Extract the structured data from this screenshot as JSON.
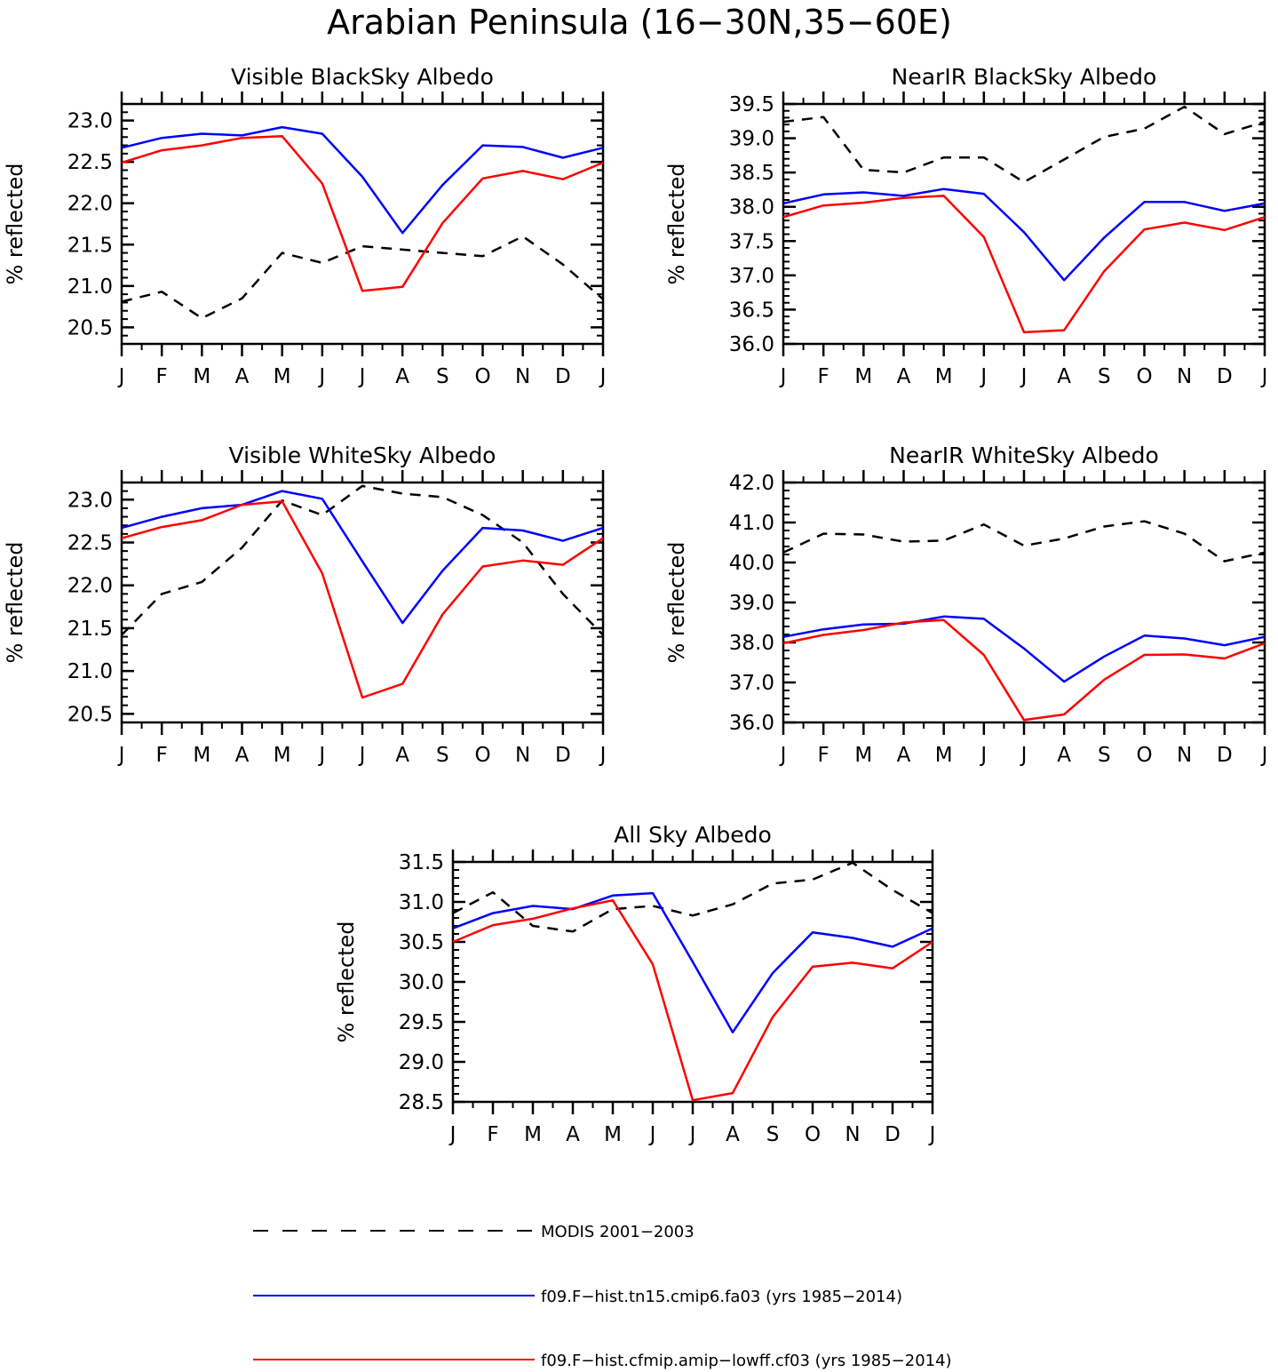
{
  "figure": {
    "title": "Arabian Peninsula (16−30N,35−60E)"
  },
  "series_styles": [
    {
      "key": "modis",
      "color": "#000000",
      "dash": "dashed"
    },
    {
      "key": "tn15",
      "color": "#0000ff",
      "dash": "solid"
    },
    {
      "key": "lowff",
      "color": "#ff0000",
      "dash": "solid"
    }
  ],
  "legend": [
    {
      "key": "modis",
      "label": "MODIS 2001−2003"
    },
    {
      "key": "tn15",
      "label": "f09.F−hist.tn15.cmip6.fa03 (yrs 1985−2014)"
    },
    {
      "key": "lowff",
      "label": "f09.F−hist.cfmip.amip−lowff.cf03 (yrs 1985−2014)"
    }
  ],
  "chart_data": [
    {
      "type": "line",
      "title": "Visible BlackSky Albedo",
      "ylabel": "% reflected",
      "categories": [
        "J",
        "F",
        "M",
        "A",
        "M",
        "J",
        "J",
        "A",
        "S",
        "O",
        "N",
        "D",
        "J"
      ],
      "ylim": [
        20.3,
        23.2
      ],
      "yticks": [
        "20.5",
        "21.0",
        "21.5",
        "22.0",
        "22.5",
        "23.0"
      ],
      "series": [
        {
          "key": "modis",
          "values": [
            20.81,
            20.93,
            20.61,
            20.85,
            21.4,
            21.28,
            21.48,
            21.44,
            21.4,
            21.36,
            21.6,
            21.26,
            20.84
          ]
        },
        {
          "key": "tn15",
          "values": [
            22.67,
            22.79,
            22.84,
            22.82,
            22.92,
            22.84,
            22.32,
            21.64,
            22.22,
            22.7,
            22.68,
            22.55,
            22.67
          ]
        },
        {
          "key": "lowff",
          "values": [
            22.49,
            22.64,
            22.7,
            22.79,
            22.81,
            22.24,
            20.94,
            20.99,
            21.76,
            22.3,
            22.39,
            22.29,
            22.49
          ]
        }
      ]
    },
    {
      "type": "line",
      "title": "NearIR BlackSky Albedo",
      "ylabel": "% reflected",
      "categories": [
        "J",
        "F",
        "M",
        "A",
        "M",
        "J",
        "J",
        "A",
        "S",
        "O",
        "N",
        "D",
        "J"
      ],
      "ylim": [
        36.0,
        39.5
      ],
      "yticks": [
        "36.0",
        "36.5",
        "37.0",
        "37.5",
        "38.0",
        "38.5",
        "39.0",
        "39.5"
      ],
      "series": [
        {
          "key": "modis",
          "values": [
            39.24,
            39.31,
            38.54,
            38.5,
            38.72,
            38.72,
            38.36,
            38.69,
            39.02,
            39.14,
            39.46,
            39.06,
            39.24
          ]
        },
        {
          "key": "tn15",
          "values": [
            38.05,
            38.18,
            38.21,
            38.16,
            38.26,
            38.19,
            37.63,
            36.93,
            37.55,
            38.07,
            38.07,
            37.94,
            38.05
          ]
        },
        {
          "key": "lowff",
          "values": [
            37.85,
            38.02,
            38.06,
            38.13,
            38.16,
            37.56,
            36.17,
            36.2,
            37.06,
            37.67,
            37.77,
            37.66,
            37.85
          ]
        }
      ]
    },
    {
      "type": "line",
      "title": "Visible WhiteSky Albedo",
      "ylabel": "% reflected",
      "categories": [
        "J",
        "F",
        "M",
        "A",
        "M",
        "J",
        "J",
        "A",
        "S",
        "O",
        "N",
        "D",
        "J"
      ],
      "ylim": [
        20.4,
        23.2
      ],
      "yticks": [
        "20.5",
        "21.0",
        "21.5",
        "22.0",
        "22.5",
        "23.0"
      ],
      "series": [
        {
          "key": "modis",
          "values": [
            21.42,
            21.9,
            22.04,
            22.44,
            22.99,
            22.82,
            23.16,
            23.07,
            23.03,
            22.82,
            22.5,
            21.9,
            21.42
          ]
        },
        {
          "key": "tn15",
          "values": [
            22.67,
            22.8,
            22.9,
            22.94,
            23.1,
            23.01,
            22.28,
            21.56,
            22.17,
            22.67,
            22.64,
            22.52,
            22.67
          ]
        },
        {
          "key": "lowff",
          "values": [
            22.55,
            22.68,
            22.76,
            22.94,
            22.98,
            22.14,
            20.69,
            20.85,
            21.66,
            22.22,
            22.29,
            22.24,
            22.55
          ]
        }
      ]
    },
    {
      "type": "line",
      "title": "NearIR WhiteSky Albedo",
      "ylabel": "% reflected",
      "categories": [
        "J",
        "F",
        "M",
        "A",
        "M",
        "J",
        "J",
        "A",
        "S",
        "O",
        "N",
        "D",
        "J"
      ],
      "ylim": [
        36.0,
        42.0
      ],
      "yticks": [
        "36.0",
        "37.0",
        "38.0",
        "39.0",
        "40.0",
        "41.0",
        "42.0"
      ],
      "series": [
        {
          "key": "modis",
          "values": [
            40.25,
            40.72,
            40.7,
            40.52,
            40.55,
            40.95,
            40.42,
            40.6,
            40.9,
            41.03,
            40.72,
            40.03,
            40.25
          ]
        },
        {
          "key": "tn15",
          "values": [
            38.14,
            38.33,
            38.45,
            38.47,
            38.65,
            38.59,
            37.85,
            37.02,
            37.65,
            38.17,
            38.1,
            37.93,
            38.14
          ]
        },
        {
          "key": "lowff",
          "values": [
            37.98,
            38.19,
            38.31,
            38.5,
            38.56,
            37.69,
            36.06,
            36.2,
            37.07,
            37.69,
            37.7,
            37.6,
            37.98
          ]
        }
      ]
    },
    {
      "type": "line",
      "title": "All Sky Albedo",
      "ylabel": "% reflected",
      "categories": [
        "J",
        "F",
        "M",
        "A",
        "M",
        "J",
        "J",
        "A",
        "S",
        "O",
        "N",
        "D",
        "J"
      ],
      "ylim": [
        28.5,
        31.5
      ],
      "yticks": [
        "28.5",
        "29.0",
        "29.5",
        "30.0",
        "30.5",
        "31.0",
        "31.5"
      ],
      "series": [
        {
          "key": "modis",
          "values": [
            30.86,
            31.12,
            30.7,
            30.63,
            30.91,
            30.95,
            30.83,
            30.97,
            31.23,
            31.28,
            31.49,
            31.15,
            30.86
          ]
        },
        {
          "key": "tn15",
          "values": [
            30.67,
            30.86,
            30.95,
            30.91,
            31.08,
            31.11,
            30.25,
            29.37,
            30.11,
            30.62,
            30.55,
            30.44,
            30.67
          ]
        },
        {
          "key": "lowff",
          "values": [
            30.5,
            30.71,
            30.79,
            30.92,
            31.02,
            30.22,
            28.52,
            28.61,
            29.56,
            30.19,
            30.24,
            30.17,
            30.5
          ]
        }
      ]
    }
  ]
}
